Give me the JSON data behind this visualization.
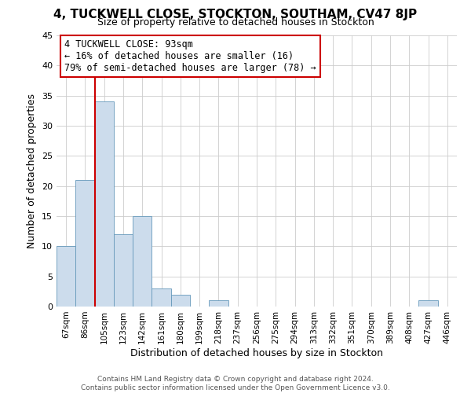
{
  "title": "4, TUCKWELL CLOSE, STOCKTON, SOUTHAM, CV47 8JP",
  "subtitle": "Size of property relative to detached houses in Stockton",
  "xlabel": "Distribution of detached houses by size in Stockton",
  "ylabel": "Number of detached properties",
  "bar_labels": [
    "67sqm",
    "86sqm",
    "105sqm",
    "123sqm",
    "142sqm",
    "161sqm",
    "180sqm",
    "199sqm",
    "218sqm",
    "237sqm",
    "256sqm",
    "275sqm",
    "294sqm",
    "313sqm",
    "332sqm",
    "351sqm",
    "370sqm",
    "389sqm",
    "408sqm",
    "427sqm",
    "446sqm"
  ],
  "bar_values": [
    10,
    21,
    34,
    12,
    15,
    3,
    2,
    0,
    1,
    0,
    0,
    0,
    0,
    0,
    0,
    0,
    0,
    0,
    0,
    1,
    0
  ],
  "bar_color": "#ccdcec",
  "bar_edge_color": "#6699bb",
  "ylim": [
    0,
    45
  ],
  "yticks": [
    0,
    5,
    10,
    15,
    20,
    25,
    30,
    35,
    40,
    45
  ],
  "vline_x": 1.5,
  "vline_color": "#cc0000",
  "annotation_text": "4 TUCKWELL CLOSE: 93sqm\n← 16% of detached houses are smaller (16)\n79% of semi-detached houses are larger (78) →",
  "annotation_box_color": "#ffffff",
  "annotation_box_edge": "#cc0000",
  "footer_line1": "Contains HM Land Registry data © Crown copyright and database right 2024.",
  "footer_line2": "Contains public sector information licensed under the Open Government Licence v3.0.",
  "background_color": "#ffffff",
  "grid_color": "#cccccc",
  "title_fontsize": 11,
  "subtitle_fontsize": 9
}
